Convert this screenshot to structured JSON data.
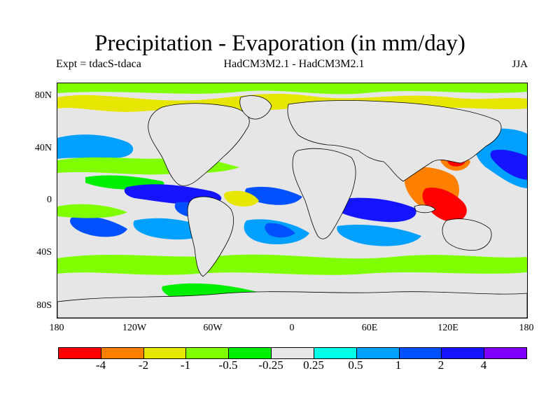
{
  "header": {
    "title": "Precipitation - Evaporation (in mm/day)",
    "experiment": "Expt = tdacS-tdaca",
    "models": "HadCM3M2.1 - HadCM3M2.1",
    "season": "JJA"
  },
  "axes": {
    "y_ticks": [
      "80N",
      "40N",
      "0",
      "40S",
      "80S"
    ],
    "x_ticks": [
      "180",
      "120W",
      "60W",
      "0",
      "60E",
      "120E",
      "180"
    ]
  },
  "legend": {
    "colors": [
      "#ff0000",
      "#ff8000",
      "#e6e600",
      "#80ff00",
      "#00ee00",
      "#e6e6e6",
      "#00ffe6",
      "#00a0ff",
      "#0050ff",
      "#1414ff",
      "#8000ff"
    ],
    "labels": [
      "-4",
      "-2",
      "-1",
      "-0.5",
      "-0.25",
      "0.25",
      "0.5",
      "1",
      "2",
      "4"
    ]
  },
  "palette": {
    "neutral": "#e6e6e6",
    "coast": "#000000"
  }
}
